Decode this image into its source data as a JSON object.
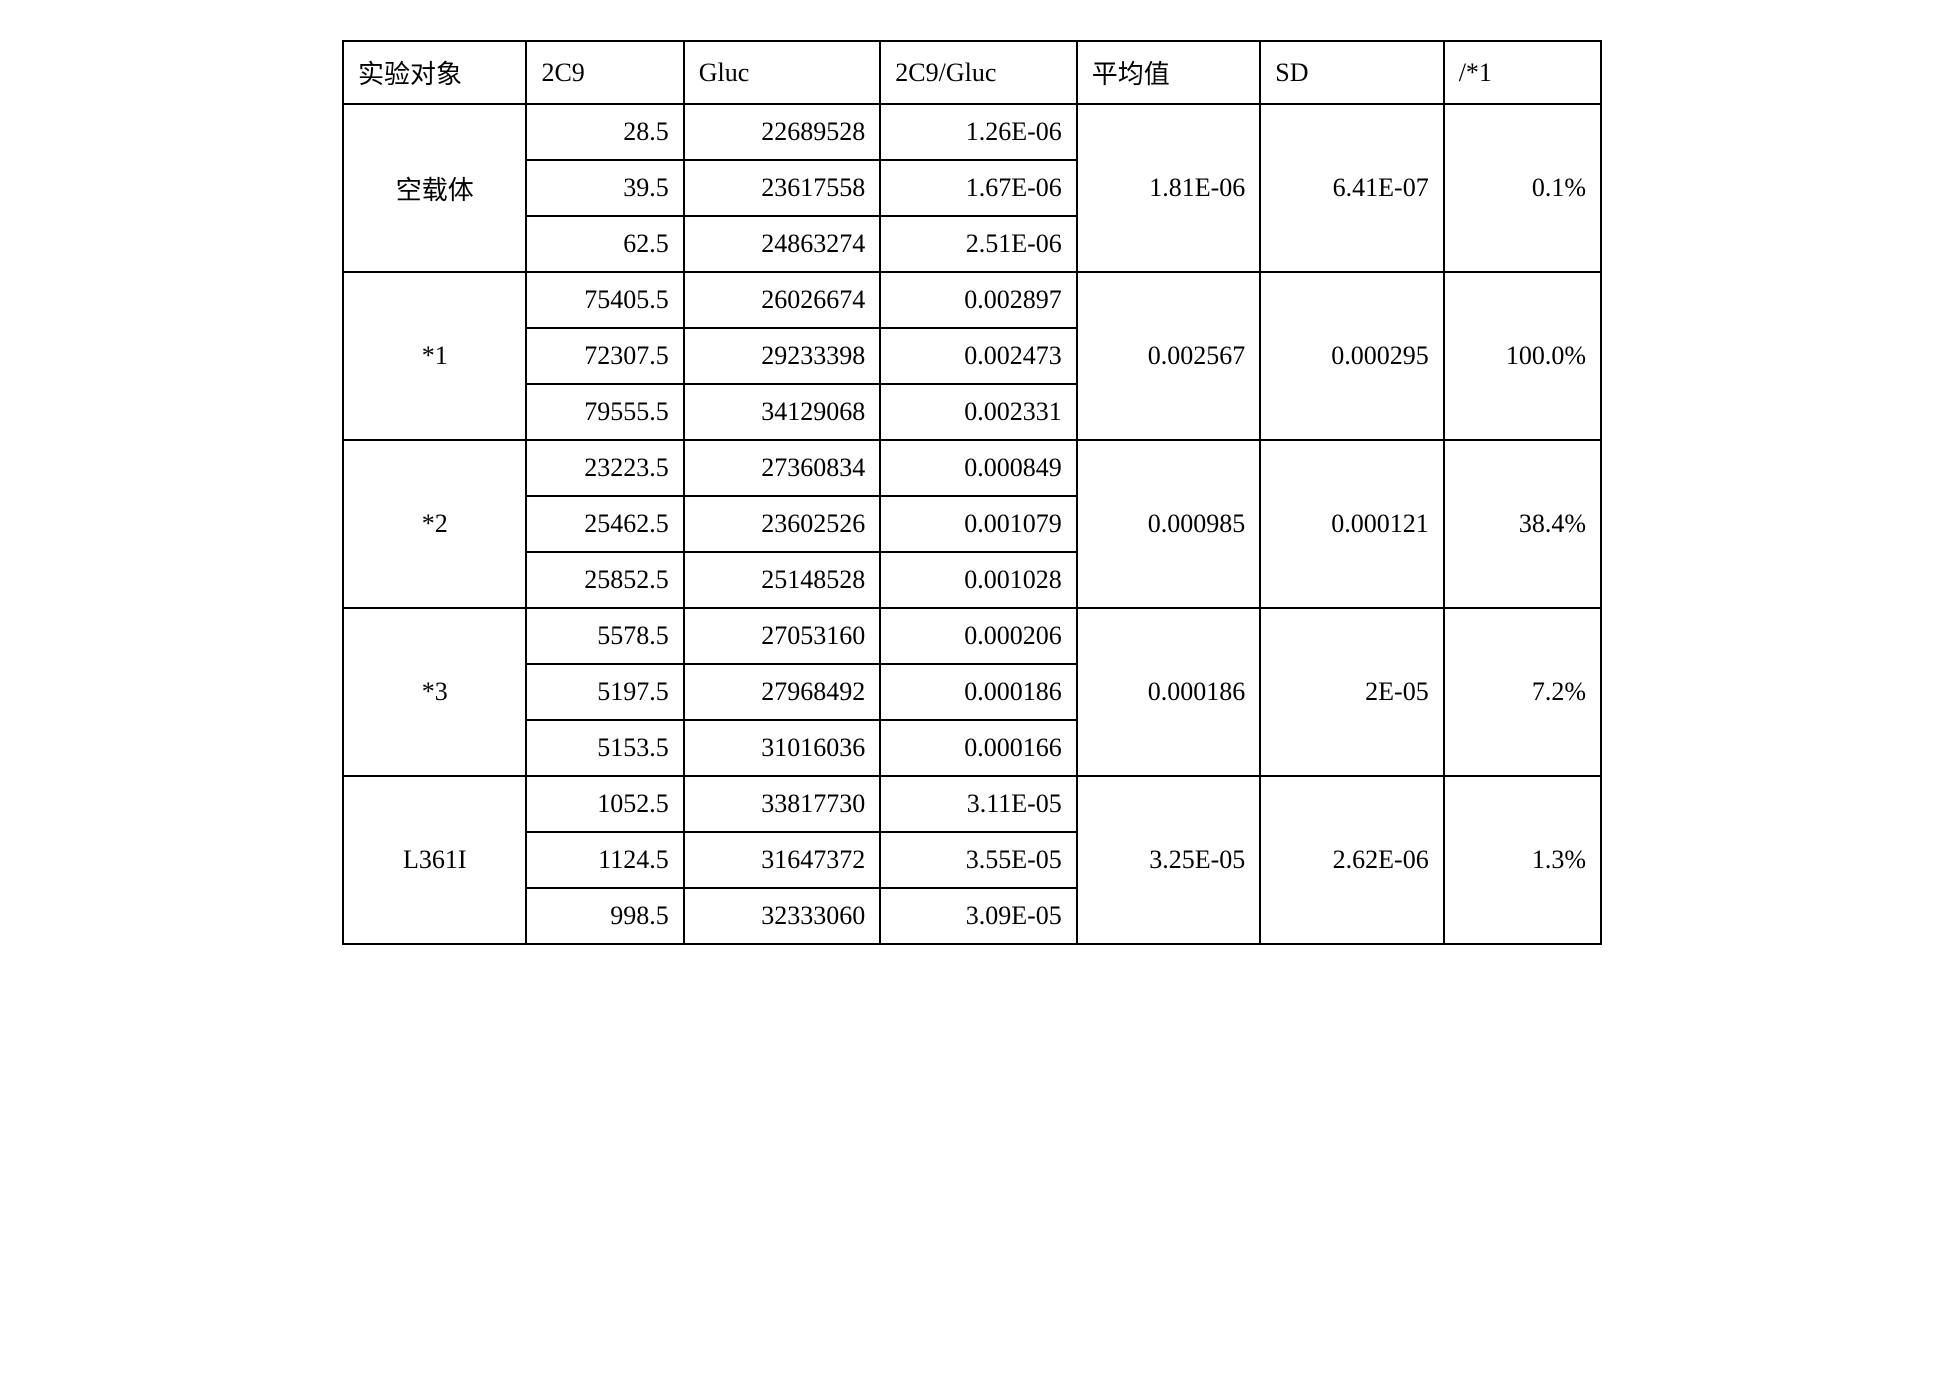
{
  "table": {
    "columns": [
      "实验对象",
      "2C9",
      "Gluc",
      "2C9/Gluc",
      "平均值",
      "SD",
      "/*1"
    ],
    "col_widths_pct": [
      14,
      12,
      15,
      15,
      14,
      14,
      12
    ],
    "border_color": "#000000",
    "background_color": "#ffffff",
    "font_family": "SimSun / Times New Roman",
    "header_fontsize_pt": 20,
    "cell_fontsize_pt": 20,
    "groups": [
      {
        "subject": "空载体",
        "rows": [
          {
            "c2c9": "28.5",
            "gluc": "22689528",
            "ratio": "1.26E-06"
          },
          {
            "c2c9": "39.5",
            "gluc": "23617558",
            "ratio": "1.67E-06"
          },
          {
            "c2c9": "62.5",
            "gluc": "24863274",
            "ratio": "2.51E-06"
          }
        ],
        "mean": "1.81E-06",
        "sd": "6.41E-07",
        "pct": "0.1%"
      },
      {
        "subject": "*1",
        "rows": [
          {
            "c2c9": "75405.5",
            "gluc": "26026674",
            "ratio": "0.002897"
          },
          {
            "c2c9": "72307.5",
            "gluc": "29233398",
            "ratio": "0.002473"
          },
          {
            "c2c9": "79555.5",
            "gluc": "34129068",
            "ratio": "0.002331"
          }
        ],
        "mean": "0.002567",
        "sd": "0.000295",
        "pct": "100.0%"
      },
      {
        "subject": "*2",
        "rows": [
          {
            "c2c9": "23223.5",
            "gluc": "27360834",
            "ratio": "0.000849"
          },
          {
            "c2c9": "25462.5",
            "gluc": "23602526",
            "ratio": "0.001079"
          },
          {
            "c2c9": "25852.5",
            "gluc": "25148528",
            "ratio": "0.001028"
          }
        ],
        "mean": "0.000985",
        "sd": "0.000121",
        "pct": "38.4%"
      },
      {
        "subject": "*3",
        "rows": [
          {
            "c2c9": "5578.5",
            "gluc": "27053160",
            "ratio": "0.000206"
          },
          {
            "c2c9": "5197.5",
            "gluc": "27968492",
            "ratio": "0.000186"
          },
          {
            "c2c9": "5153.5",
            "gluc": "31016036",
            "ratio": "0.000166"
          }
        ],
        "mean": "0.000186",
        "sd": "2E-05",
        "pct": "7.2%"
      },
      {
        "subject": "L361I",
        "rows": [
          {
            "c2c9": "1052.5",
            "gluc": "33817730",
            "ratio": "3.11E-05"
          },
          {
            "c2c9": "1124.5",
            "gluc": "31647372",
            "ratio": "3.55E-05"
          },
          {
            "c2c9": "998.5",
            "gluc": "32333060",
            "ratio": "3.09E-05"
          }
        ],
        "mean": "3.25E-05",
        "sd": "2.62E-06",
        "pct": "1.3%"
      }
    ]
  }
}
